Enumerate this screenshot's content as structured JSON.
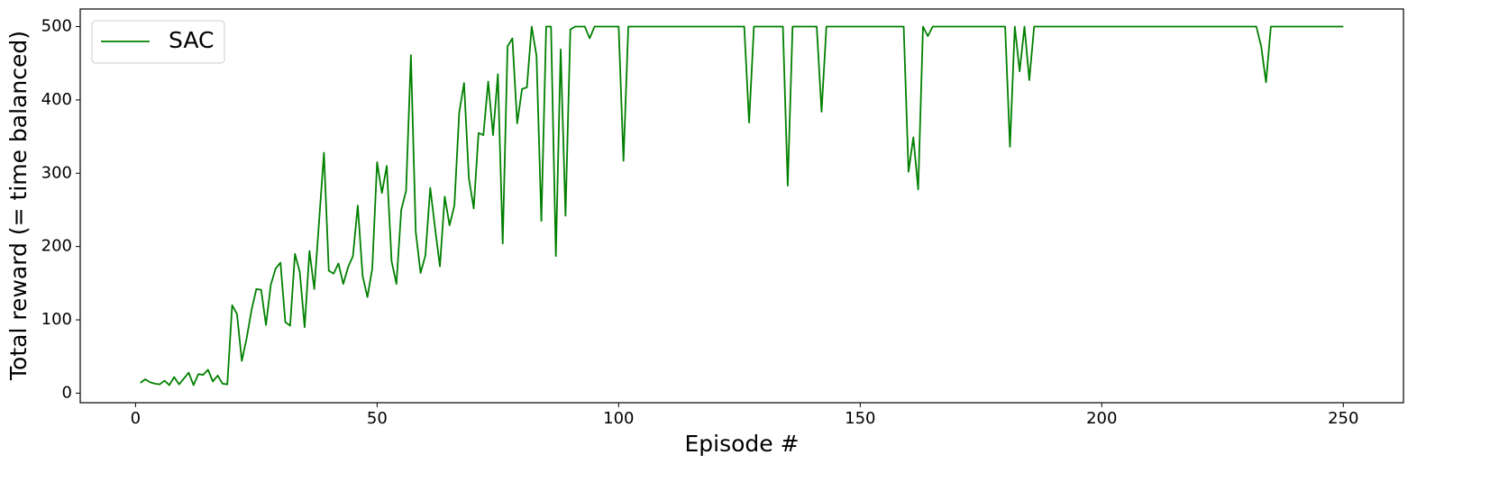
{
  "chart_data": {
    "type": "line",
    "xlabel": "Episode #",
    "ylabel": "Total reward (= time balanced)",
    "x": [
      1,
      2,
      3,
      4,
      5,
      6,
      7,
      8,
      9,
      10,
      11,
      12,
      13,
      14,
      15,
      16,
      17,
      18,
      19,
      20,
      21,
      22,
      23,
      24,
      25,
      26,
      27,
      28,
      29,
      30,
      31,
      32,
      33,
      34,
      35,
      36,
      37,
      38,
      39,
      40,
      41,
      42,
      43,
      44,
      45,
      46,
      47,
      48,
      49,
      50,
      51,
      52,
      53,
      54,
      55,
      56,
      57,
      58,
      59,
      60,
      61,
      62,
      63,
      64,
      65,
      66,
      67,
      68,
      69,
      70,
      71,
      72,
      73,
      74,
      75,
      76,
      77,
      78,
      79,
      80,
      81,
      82,
      83,
      84,
      85,
      86,
      87,
      88,
      89,
      90,
      91,
      92,
      93,
      94,
      95,
      96,
      97,
      98,
      99,
      100,
      101,
      102,
      103,
      104,
      105,
      106,
      107,
      108,
      109,
      110,
      111,
      112,
      113,
      114,
      115,
      116,
      117,
      118,
      119,
      120,
      121,
      122,
      123,
      124,
      125,
      126,
      127,
      128,
      129,
      130,
      131,
      132,
      133,
      134,
      135,
      136,
      137,
      138,
      139,
      140,
      141,
      142,
      143,
      144,
      145,
      146,
      147,
      148,
      149,
      150,
      151,
      152,
      153,
      154,
      155,
      156,
      157,
      158,
      159,
      160,
      161,
      162,
      163,
      164,
      165,
      166,
      167,
      168,
      169,
      170,
      171,
      172,
      173,
      174,
      175,
      176,
      177,
      178,
      179,
      180,
      181,
      182,
      183,
      184,
      185,
      186,
      187,
      188,
      189,
      190,
      191,
      192,
      193,
      194,
      195,
      196,
      197,
      198,
      199,
      200,
      201,
      202,
      203,
      204,
      205,
      206,
      207,
      208,
      209,
      210,
      211,
      212,
      213,
      214,
      215,
      216,
      217,
      218,
      219,
      220,
      221,
      222,
      223,
      224,
      225,
      226,
      227,
      228,
      229,
      230,
      231,
      232,
      233,
      234,
      235,
      236,
      237,
      238,
      239,
      240,
      241,
      242,
      243,
      244,
      245,
      246,
      247,
      248,
      249,
      250
    ],
    "series": [
      {
        "name": "SAC",
        "color": "#008000",
        "values": [
          14,
          19,
          15,
          13,
          12,
          17,
          11,
          22,
          12,
          20,
          28,
          11,
          26,
          25,
          32,
          16,
          24,
          13,
          12,
          120,
          108,
          44,
          75,
          113,
          142,
          141,
          93,
          148,
          170,
          178,
          97,
          92,
          190,
          165,
          90,
          194,
          142,
          235,
          328,
          167,
          163,
          177,
          149,
          172,
          187,
          256,
          160,
          131,
          170,
          315,
          273,
          310,
          180,
          149,
          250,
          276,
          461,
          220,
          164,
          188,
          280,
          225,
          173,
          268,
          229,
          256,
          383,
          423,
          293,
          252,
          355,
          352,
          425,
          352,
          435,
          204,
          473,
          484,
          368,
          415,
          417,
          500,
          460,
          235,
          500,
          500,
          187,
          469,
          242,
          496,
          500,
          500,
          500,
          484,
          500,
          500,
          500,
          500,
          500,
          500,
          317,
          500,
          500,
          500,
          500,
          500,
          500,
          500,
          500,
          500,
          500,
          500,
          500,
          500,
          500,
          500,
          500,
          500,
          500,
          500,
          500,
          500,
          500,
          500,
          500,
          500,
          369,
          500,
          500,
          500,
          500,
          500,
          500,
          500,
          283,
          500,
          500,
          500,
          500,
          500,
          500,
          384,
          500,
          500,
          500,
          500,
          500,
          500,
          500,
          500,
          500,
          500,
          500,
          500,
          500,
          500,
          500,
          500,
          500,
          302,
          349,
          278,
          500,
          487,
          500,
          500,
          500,
          500,
          500,
          500,
          500,
          500,
          500,
          500,
          500,
          500,
          500,
          500,
          500,
          500,
          336,
          500,
          439,
          500,
          427,
          500,
          500,
          500,
          500,
          500,
          500,
          500,
          500,
          500,
          500,
          500,
          500,
          500,
          500,
          500,
          500,
          500,
          500,
          500,
          500,
          500,
          500,
          500,
          500,
          500,
          500,
          500,
          500,
          500,
          500,
          500,
          500,
          500,
          500,
          500,
          500,
          500,
          500,
          500,
          500,
          500,
          500,
          500,
          500,
          500,
          500,
          500,
          473,
          424,
          500,
          500,
          500,
          500,
          500,
          500,
          500,
          500,
          500,
          500,
          500,
          500,
          500,
          500,
          500,
          500
        ]
      }
    ],
    "xlim": [
      -11.45,
      262.45
    ],
    "xticks": [
      0,
      50,
      100,
      150,
      200,
      250
    ],
    "ylim": [
      -13,
      524
    ],
    "yticks": [
      0,
      100,
      200,
      300,
      400,
      500
    ],
    "legend": "upper left"
  }
}
